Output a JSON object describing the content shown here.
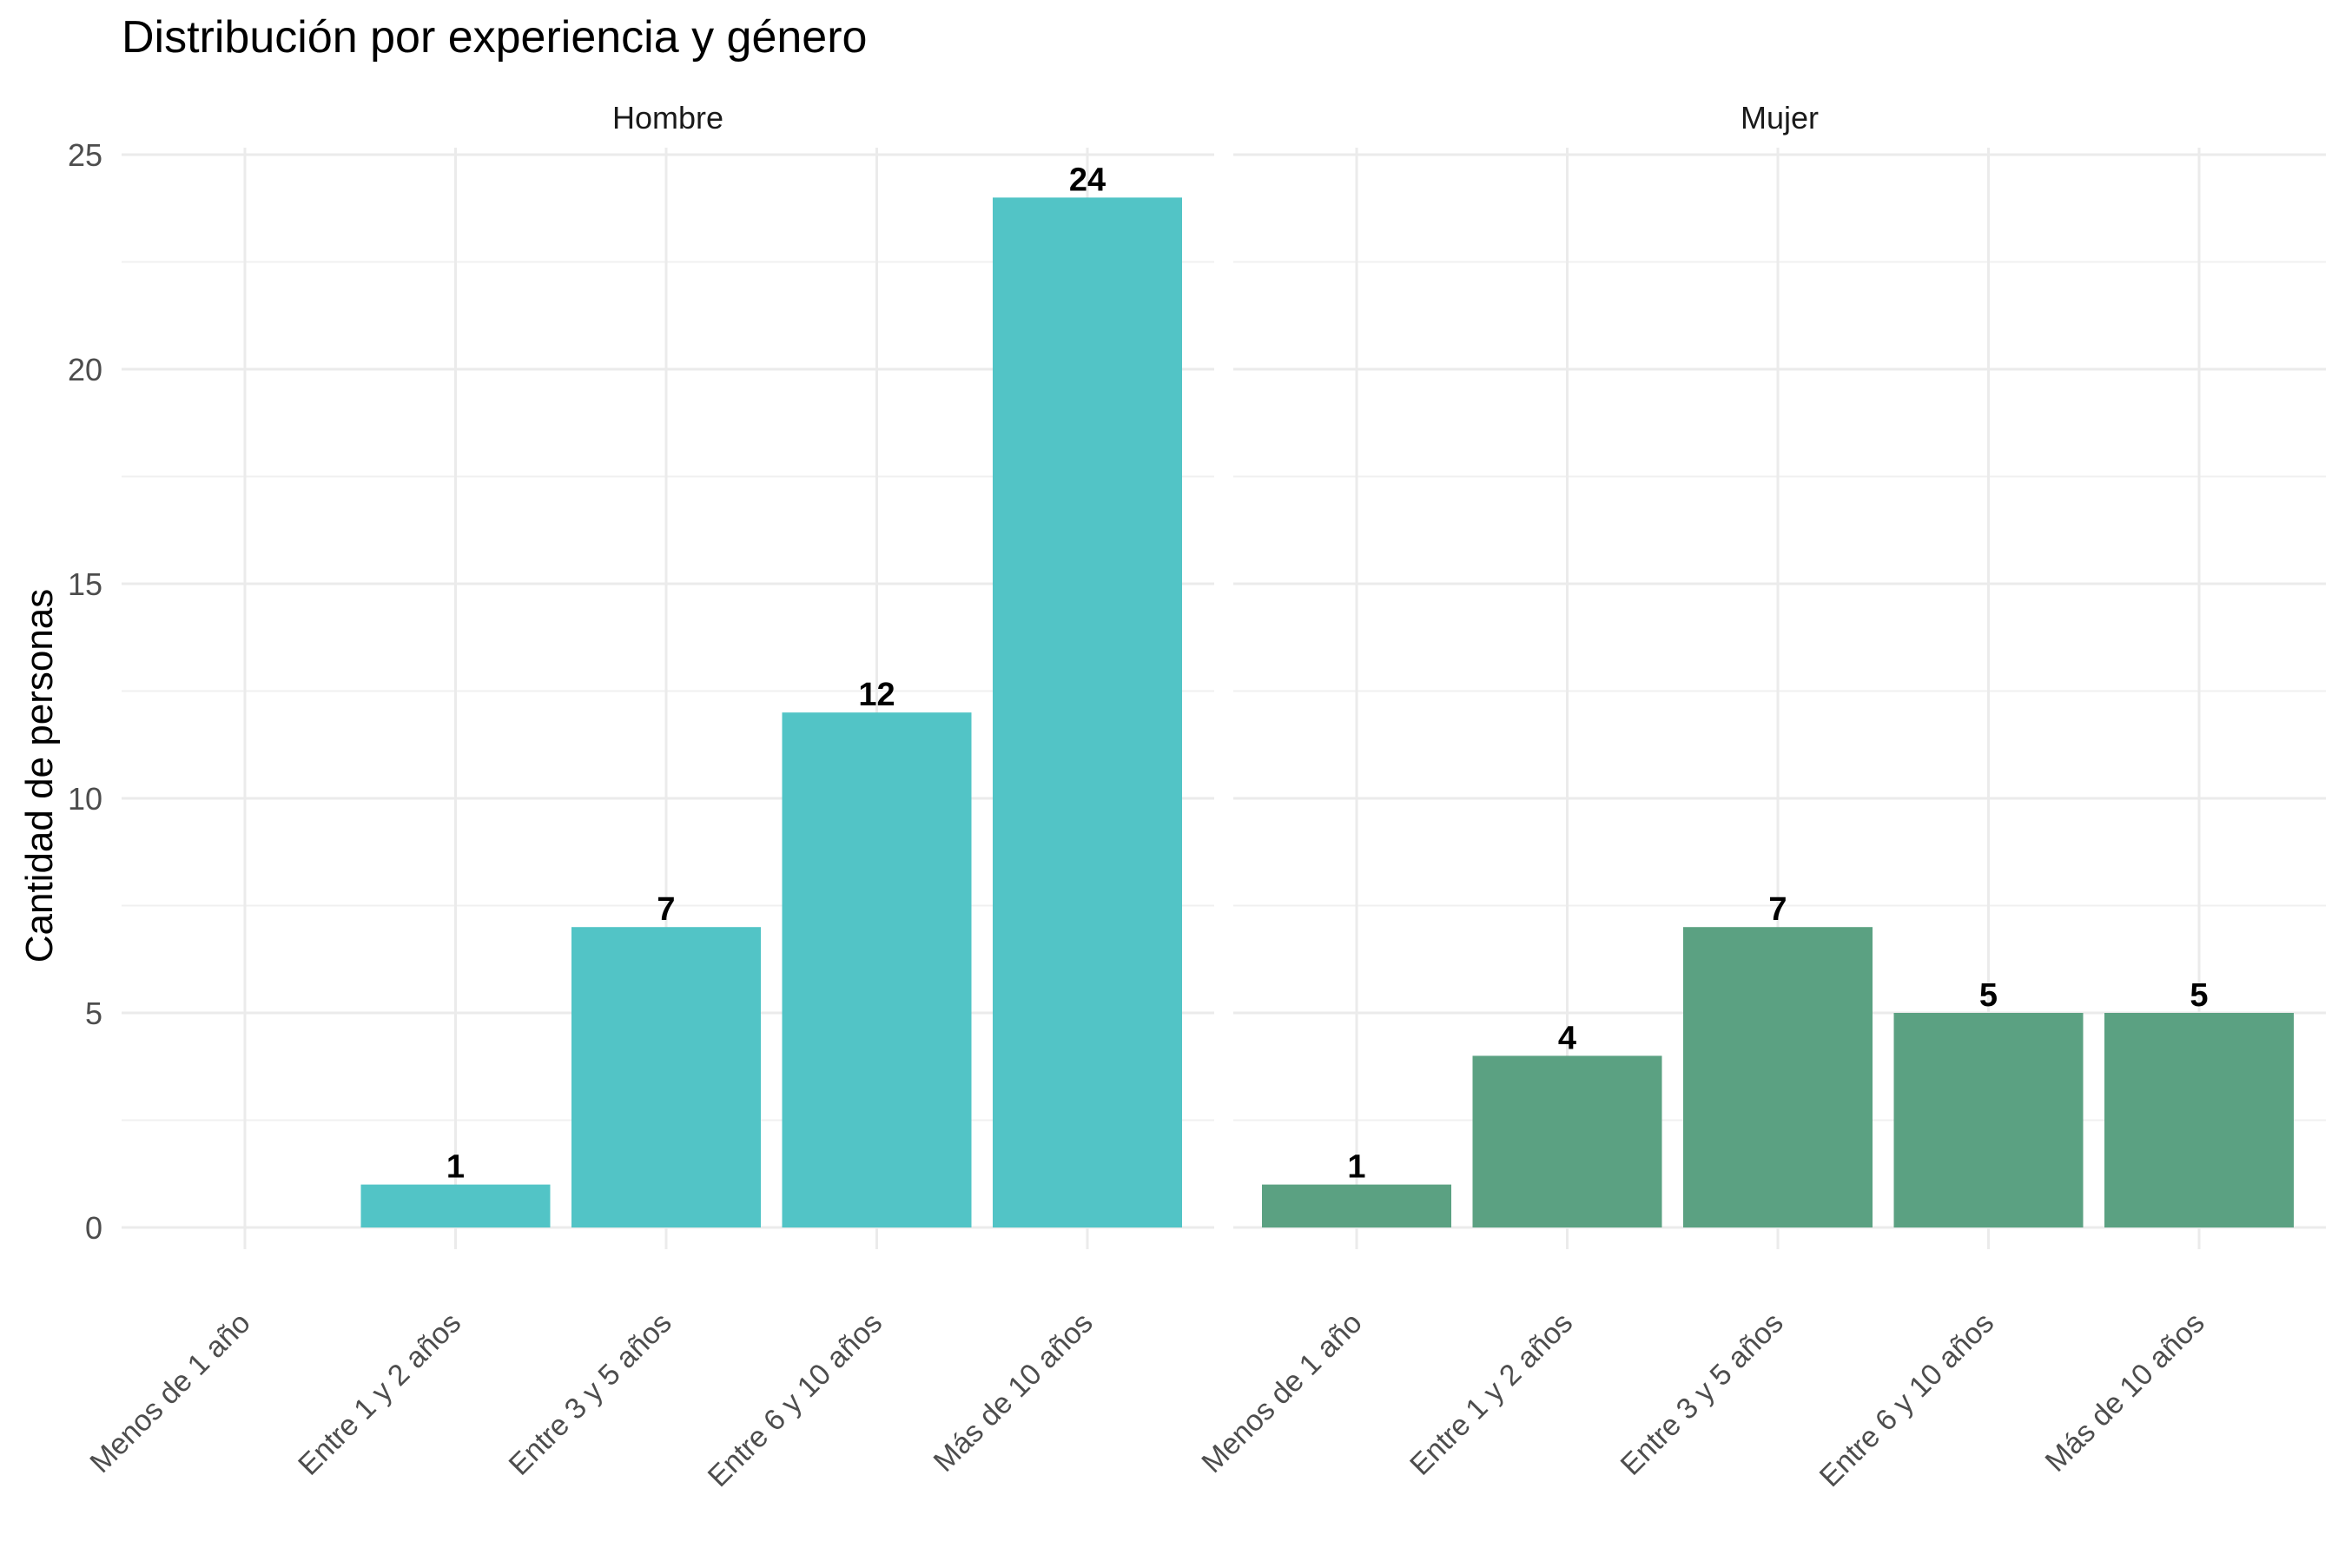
{
  "chart_data": {
    "type": "bar",
    "title": "Distribución por experiencia y género",
    "xlabel": "",
    "ylabel": "Cantidad de personas",
    "ylim": [
      0,
      25
    ],
    "yticks": [
      "0",
      "5",
      "10",
      "15",
      "20",
      "25"
    ],
    "grid": true,
    "legend": "none",
    "categories": [
      "Menos de 1 año",
      "Entre 1 y 2 años",
      "Entre 3 y 5 años",
      "Entre 6 y 10 años",
      "Más de 10 años"
    ],
    "panels": [
      {
        "name": "Hombre",
        "color": "#52C4C6",
        "values": [
          0,
          1,
          7,
          12,
          24
        ],
        "labels": [
          "",
          "1",
          "7",
          "12",
          "24"
        ]
      },
      {
        "name": "Mujer",
        "color": "#5BA182",
        "values": [
          1,
          4,
          7,
          5,
          5
        ],
        "labels": [
          "1",
          "4",
          "7",
          "5",
          "5"
        ]
      }
    ]
  }
}
